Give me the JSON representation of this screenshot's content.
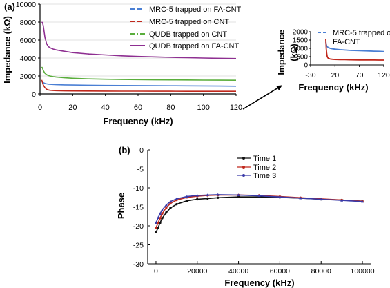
{
  "colors": {
    "blue": "#4a7fd4",
    "red": "#c0281c",
    "green": "#5aae3c",
    "purple": "#8e2f91",
    "black": "#111111",
    "navy": "#3a3aa8"
  },
  "chart_data": [
    {
      "panel_label": "(a)",
      "type": "line",
      "xlabel": "Frequency (kHz)",
      "ylabel": "Impedance (kΩ)",
      "xlim": [
        0,
        120
      ],
      "ylim": [
        0,
        10000
      ],
      "xticks": [
        "0",
        "20",
        "40",
        "60",
        "80",
        "100",
        "120"
      ],
      "yticks": [
        "0",
        "2000",
        "4000",
        "6000",
        "8000",
        "10000"
      ],
      "legend_position": "top-right",
      "series": [
        {
          "name": "MRC-5 trapped on FA-CNT",
          "style": "dashed",
          "color": "blue",
          "x": [
            1,
            1.5,
            2,
            3,
            4,
            5,
            6,
            8,
            10,
            15,
            20,
            30,
            40,
            50,
            60,
            70,
            80,
            90,
            100,
            110,
            120
          ],
          "y": [
            1400,
            1320,
            1250,
            1170,
            1120,
            1090,
            1070,
            1050,
            1030,
            1010,
            990,
            970,
            950,
            940,
            930,
            920,
            910,
            900,
            890,
            880,
            860
          ]
        },
        {
          "name": "MRC-5 trapped on CNT",
          "style": "dashed",
          "color": "red",
          "x": [
            1,
            1.5,
            2,
            3,
            4,
            5,
            6,
            8,
            10,
            15,
            20,
            30,
            40,
            50,
            60,
            70,
            80,
            90,
            100,
            110,
            120
          ],
          "y": [
            1550,
            1300,
            1000,
            700,
            520,
            450,
            410,
            380,
            360,
            340,
            330,
            320,
            315,
            310,
            305,
            300,
            300,
            295,
            295,
            290,
            290
          ]
        },
        {
          "name": "QUDB trapped on CNT",
          "style": "dashdot",
          "color": "green",
          "x": [
            1,
            1.5,
            2,
            3,
            4,
            5,
            6,
            8,
            10,
            15,
            20,
            30,
            40,
            50,
            60,
            70,
            80,
            90,
            100,
            110,
            120
          ],
          "y": [
            3000,
            2900,
            2600,
            2300,
            2150,
            2050,
            2000,
            1930,
            1880,
            1800,
            1750,
            1680,
            1640,
            1610,
            1590,
            1570,
            1560,
            1550,
            1540,
            1530,
            1520
          ]
        },
        {
          "name": "QUDB trapped on FA-CNT",
          "style": "solid",
          "color": "purple",
          "x": [
            1,
            1.5,
            2,
            3,
            4,
            5,
            6,
            8,
            10,
            15,
            20,
            30,
            40,
            50,
            60,
            70,
            80,
            90,
            100,
            110,
            120
          ],
          "y": [
            8000,
            7950,
            7600,
            6300,
            5600,
            5300,
            5150,
            5000,
            4900,
            4750,
            4600,
            4450,
            4350,
            4250,
            4180,
            4130,
            4080,
            4040,
            4000,
            3970,
            3940
          ]
        }
      ]
    },
    {
      "panel_label": "",
      "type": "line",
      "xlabel": "Frequency (kHz)",
      "ylabel": "Impedance (kΩ)",
      "xlim": [
        -30,
        120
      ],
      "ylim": [
        0,
        2000
      ],
      "xticks": [
        "-30",
        "20",
        "70",
        "120"
      ],
      "yticks": [
        "0",
        "500",
        "1000",
        "1500",
        "2000"
      ],
      "legend_position": "top-right",
      "series": [
        {
          "name": "MRC-5 trapped on FA-CNT",
          "style": "dashed",
          "color": "blue",
          "x": [
            1,
            2,
            3,
            4,
            6,
            8,
            10,
            15,
            20,
            30,
            40,
            50,
            60,
            70,
            80,
            90,
            100,
            110,
            120
          ],
          "y": [
            1400,
            1250,
            1150,
            1100,
            1060,
            1030,
            1000,
            970,
            950,
            920,
            900,
            880,
            870,
            860,
            850,
            840,
            830,
            820,
            810
          ]
        },
        {
          "name": "",
          "style": "solid",
          "color": "red",
          "x": [
            1,
            1.5,
            2,
            3,
            4,
            5,
            6,
            8,
            10,
            15,
            20,
            30,
            40,
            50,
            60,
            70,
            80,
            90,
            100,
            110,
            120
          ],
          "y": [
            1550,
            1300,
            1000,
            700,
            520,
            450,
            410,
            380,
            360,
            340,
            330,
            320,
            315,
            310,
            305,
            300,
            300,
            295,
            295,
            290,
            290
          ]
        }
      ]
    },
    {
      "panel_label": "(b)",
      "type": "line",
      "xlabel": "Frequency (kHz)",
      "ylabel": "Phase",
      "xlim": [
        -4000,
        104000
      ],
      "ylim": [
        -30,
        0
      ],
      "xticks": [
        "0",
        "20000",
        "40000",
        "60000",
        "80000",
        "100000"
      ],
      "yticks": [
        "0",
        "-5",
        "-10",
        "-15",
        "-20",
        "-25",
        "-30"
      ],
      "legend_position": "top-right",
      "series": [
        {
          "name": "Time 1",
          "color": "black",
          "marker": "circle",
          "x": [
            0,
            1000,
            2000,
            3000,
            5000,
            7000,
            10000,
            15000,
            20000,
            25000,
            30000,
            40000,
            50000,
            60000,
            70000,
            80000,
            90000,
            100000
          ],
          "y": [
            -21.7,
            -20.5,
            -19.2,
            -18.0,
            -16.5,
            -15.3,
            -14.3,
            -13.4,
            -13.0,
            -12.8,
            -12.6,
            -12.4,
            -12.4,
            -12.5,
            -12.7,
            -13.0,
            -13.2,
            -13.5
          ]
        },
        {
          "name": "Time 2",
          "color": "red",
          "marker": "circle",
          "x": [
            0,
            1000,
            2000,
            3000,
            5000,
            7000,
            10000,
            15000,
            20000,
            25000,
            30000,
            40000,
            50000,
            60000,
            70000,
            80000,
            90000,
            100000
          ],
          "y": [
            -20.5,
            -19.2,
            -18.0,
            -16.8,
            -15.2,
            -14.1,
            -13.2,
            -12.5,
            -12.2,
            -12.0,
            -11.9,
            -11.9,
            -12.0,
            -12.3,
            -12.6,
            -12.9,
            -13.2,
            -13.5
          ]
        },
        {
          "name": "Time 3",
          "color": "navy",
          "marker": "triangle",
          "x": [
            0,
            1000,
            2000,
            3000,
            5000,
            7000,
            10000,
            15000,
            20000,
            25000,
            30000,
            40000,
            50000,
            60000,
            70000,
            80000,
            90000,
            100000
          ],
          "y": [
            -19.2,
            -17.9,
            -16.8,
            -15.8,
            -14.5,
            -13.6,
            -12.9,
            -12.3,
            -12.0,
            -11.9,
            -11.8,
            -11.9,
            -12.1,
            -12.4,
            -12.7,
            -13.0,
            -13.3,
            -13.6
          ]
        }
      ]
    }
  ]
}
